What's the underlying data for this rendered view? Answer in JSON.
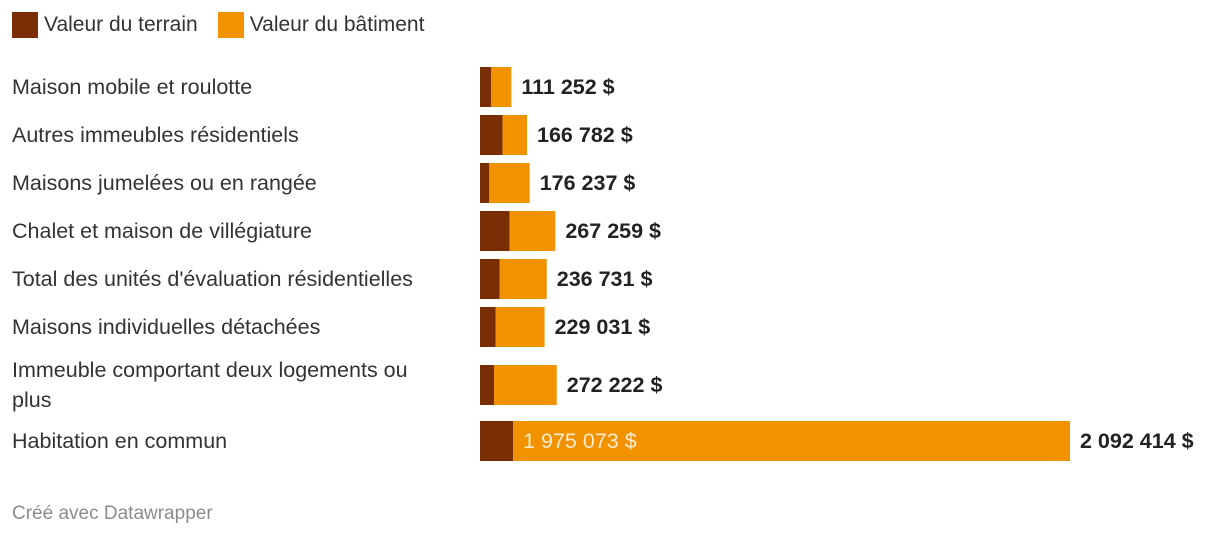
{
  "legend": {
    "land_label": "Valeur du terrain",
    "building_label": "Valeur du bâtiment"
  },
  "colors": {
    "land": "#7a2e05",
    "building": "#f39200",
    "text": "#333333",
    "inner_label": "#fdeccd"
  },
  "footer": "Créé avec Datawrapper",
  "chart_data": {
    "type": "bar",
    "orientation": "horizontal",
    "stacked": true,
    "categories": [
      [
        "Maison mobile et roulotte"
      ],
      [
        "Autres immeubles résidentiels"
      ],
      [
        "Maisons jumelées ou en rangée"
      ],
      [
        "Chalet et maison de villégiature"
      ],
      [
        "Total des unités d'évaluation résidentielles"
      ],
      [
        "Maisons individuelles détachées"
      ],
      [
        "Immeuble comportant deux logements ou",
        "plus"
      ],
      [
        "Habitation en commun"
      ]
    ],
    "series": [
      {
        "name": "Valeur du terrain",
        "values": [
          40000,
          80000,
          33000,
          105000,
          70000,
          55000,
          50000,
          117341
        ]
      },
      {
        "name": "Valeur du bâtiment",
        "values": [
          71252,
          86782,
          143237,
          162259,
          166731,
          174031,
          222222,
          1975073
        ]
      }
    ],
    "totals": [
      111252,
      166782,
      176237,
      267259,
      236731,
      229031,
      272222,
      2092414
    ],
    "total_labels": [
      "111 252 $",
      "166 782 $",
      "176 237 $",
      "267 259 $",
      "236 731 $",
      "229 031 $",
      "272 222 $",
      "2 092 414 $"
    ],
    "inner_labels": [
      "",
      "",
      "",
      "",
      "",
      "",
      "",
      "1 975 073 $"
    ],
    "xlim": [
      0,
      2092414
    ],
    "grid": false,
    "legend_position": "top-left"
  }
}
